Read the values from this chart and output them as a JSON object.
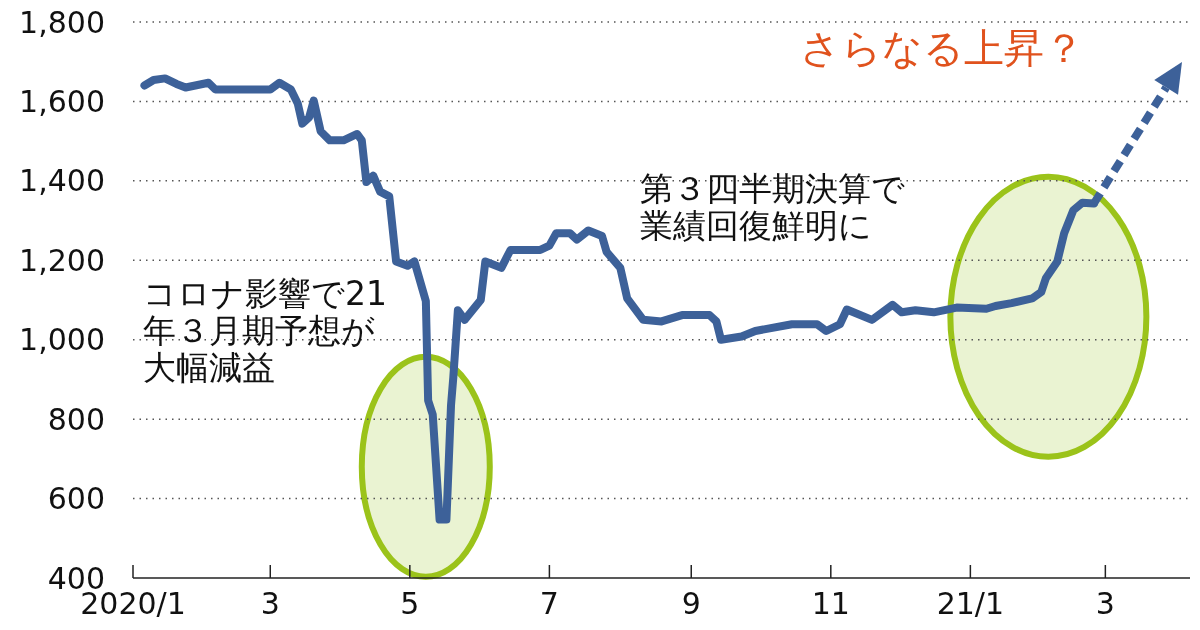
{
  "chart_data": {
    "type": "line",
    "x": [
      "2020-01-06",
      "2020-01-10",
      "2020-01-15",
      "2020-01-20",
      "2020-01-24",
      "2020-02-03",
      "2020-02-06",
      "2020-02-17",
      "2020-03-01",
      "2020-03-05",
      "2020-03-10",
      "2020-03-13",
      "2020-03-15",
      "2020-03-18",
      "2020-03-20",
      "2020-03-23",
      "2020-03-27",
      "2020-04-02",
      "2020-04-08",
      "2020-04-10",
      "2020-04-12",
      "2020-04-15",
      "2020-04-18",
      "2020-04-22",
      "2020-04-25",
      "2020-04-30",
      "2020-05-03",
      "2020-05-08",
      "2020-05-09",
      "2020-05-11",
      "2020-05-14",
      "2020-05-17",
      "2020-05-19",
      "2020-05-20",
      "2020-05-22",
      "2020-05-25",
      "2020-06-01",
      "2020-06-03",
      "2020-06-10",
      "2020-06-14",
      "2020-06-27",
      "2020-07-01",
      "2020-07-04",
      "2020-07-10",
      "2020-07-13",
      "2020-07-18",
      "2020-07-24",
      "2020-07-26",
      "2020-08-01",
      "2020-08-04",
      "2020-08-11",
      "2020-08-19",
      "2020-08-28",
      "2020-09-09",
      "2020-09-12",
      "2020-09-14",
      "2020-09-23",
      "2020-09-29",
      "2020-10-15",
      "2020-10-26",
      "2020-10-30",
      "2020-11-05",
      "2020-11-08",
      "2020-11-19",
      "2020-11-28",
      "2020-12-02",
      "2020-12-08",
      "2020-12-16",
      "2020-12-26",
      "2021-01-08",
      "2021-01-12",
      "2021-01-19",
      "2021-01-28",
      "2021-02-01",
      "2021-02-03",
      "2021-02-08",
      "2021-02-11",
      "2021-02-15",
      "2021-02-19",
      "2021-02-24"
    ],
    "series": [
      {
        "color": "#3d6199",
        "values": [
          1640,
          1654,
          1658,
          1644,
          1635,
          1647,
          1630,
          1630,
          1630,
          1647,
          1630,
          1595,
          1544,
          1560,
          1602,
          1525,
          1502,
          1502,
          1518,
          1502,
          1397,
          1413,
          1373,
          1361,
          1197,
          1186,
          1197,
          1097,
          847,
          812,
          547,
          547,
          835,
          905,
          1074,
          1050,
          1100,
          1197,
          1181,
          1226,
          1226,
          1237,
          1268,
          1268,
          1252,
          1275,
          1261,
          1221,
          1181,
          1104,
          1050,
          1046,
          1062,
          1062,
          1046,
          1000,
          1008,
          1022,
          1039,
          1039,
          1022,
          1039,
          1076,
          1050,
          1088,
          1069,
          1074,
          1069,
          1081,
          1078,
          1085,
          1092,
          1104,
          1120,
          1155,
          1197,
          1268,
          1326,
          1345,
          1343
        ]
      }
    ],
    "xlim": [
      "2020-01-01",
      "2021-04-07"
    ],
    "xticks": [
      {
        "value": "2020-01-01",
        "label": "2020/1"
      },
      {
        "value": "2020-03-01",
        "label": "3"
      },
      {
        "value": "2020-05-01",
        "label": "5"
      },
      {
        "value": "2020-07-01",
        "label": "7"
      },
      {
        "value": "2020-09-01",
        "label": "9"
      },
      {
        "value": "2020-11-01",
        "label": "11"
      },
      {
        "value": "2021-01-01",
        "label": "21/1"
      },
      {
        "value": "2021-03-01",
        "label": "3"
      }
    ],
    "ylim": [
      400,
      1800
    ],
    "yticks": [
      {
        "value": 400,
        "label": "400"
      },
      {
        "value": 600,
        "label": "600"
      },
      {
        "value": 800,
        "label": "800"
      },
      {
        "value": 1000,
        "label": "1,000"
      },
      {
        "value": 1200,
        "label": "1,200"
      },
      {
        "value": 1400,
        "label": "1,400"
      },
      {
        "value": 1600,
        "label": "1,600"
      },
      {
        "value": 1800,
        "label": "1,800"
      }
    ],
    "grid": "y",
    "marker": "none",
    "line_style": "solid",
    "annotations": [
      "コロナ影響で21年３月期予想が大幅減益",
      "第３四半期決算で業績回復鮮明に",
      "さらなる上昇？"
    ]
  }
}
